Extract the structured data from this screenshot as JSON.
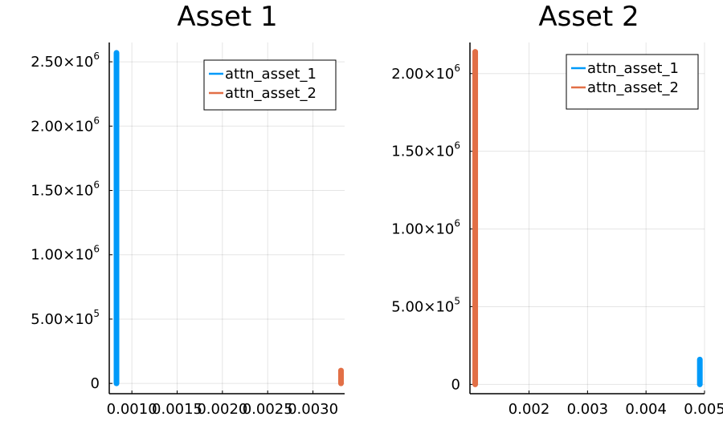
{
  "chart_data": [
    {
      "type": "line",
      "title": "Asset 1",
      "xlim": [
        0.00075,
        0.00335
      ],
      "ylim": [
        -80000,
        2650000
      ],
      "x_ticks": [
        0.001,
        0.0015,
        0.002,
        0.0025,
        0.003
      ],
      "x_tick_labels": [
        "0.0010",
        "0.0015",
        "0.0020",
        "0.0025",
        "0.0030"
      ],
      "y_ticks": [
        0,
        500000,
        1000000,
        1500000,
        2000000,
        2500000
      ],
      "y_tick_labels": [
        {
          "mantissa": "0",
          "exp": ""
        },
        {
          "mantissa": "5.00×10",
          "exp": "5"
        },
        {
          "mantissa": "1.00×10",
          "exp": "6"
        },
        {
          "mantissa": "1.50×10",
          "exp": "6"
        },
        {
          "mantissa": "2.00×10",
          "exp": "6"
        },
        {
          "mantissa": "2.50×10",
          "exp": "6"
        }
      ],
      "grid": true,
      "legend_position": "top-right",
      "series": [
        {
          "name": "attn_asset_1",
          "color": "#009af9",
          "x": [
            0.00083,
            0.00083
          ],
          "y": [
            0,
            2570000
          ]
        },
        {
          "name": "attn_asset_2",
          "color": "#e26f46",
          "x": [
            0.00331,
            0.00331
          ],
          "y": [
            0,
            100000
          ]
        }
      ]
    },
    {
      "type": "line",
      "title": "Asset 2",
      "xlim": [
        0.00099,
        0.005
      ],
      "ylim": [
        -60000,
        2200000
      ],
      "x_ticks": [
        0.002,
        0.003,
        0.004,
        0.005
      ],
      "x_tick_labels": [
        "0.002",
        "0.003",
        "0.004",
        "0.005"
      ],
      "y_ticks": [
        0,
        500000,
        1000000,
        1500000,
        2000000
      ],
      "y_tick_labels": [
        {
          "mantissa": "0",
          "exp": ""
        },
        {
          "mantissa": "5.00×10",
          "exp": "5"
        },
        {
          "mantissa": "1.00×10",
          "exp": "6"
        },
        {
          "mantissa": "1.50×10",
          "exp": "6"
        },
        {
          "mantissa": "2.00×10",
          "exp": "6"
        }
      ],
      "grid": true,
      "legend_position": "top-right",
      "series": [
        {
          "name": "attn_asset_1",
          "color": "#009af9",
          "x": [
            0.00492,
            0.00492
          ],
          "y": [
            0,
            160000
          ]
        },
        {
          "name": "attn_asset_2",
          "color": "#e26f46",
          "x": [
            0.00108,
            0.00108
          ],
          "y": [
            0,
            2140000
          ]
        }
      ]
    }
  ]
}
